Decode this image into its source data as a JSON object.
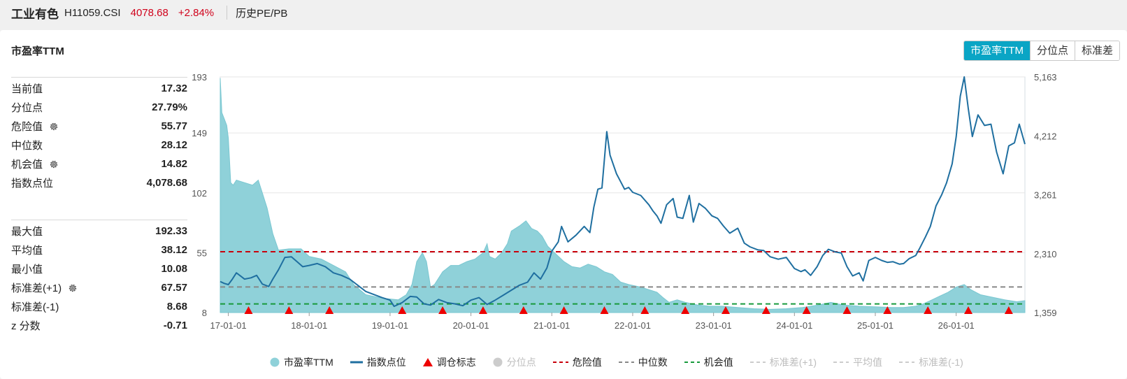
{
  "header": {
    "name": "工业有色",
    "code": "H11059.CSI",
    "price": "4078.68",
    "change": "+2.84%",
    "tab": "历史PE/PB"
  },
  "chart_title": "市盈率TTM",
  "buttons": [
    {
      "label": "市盈率TTM",
      "active": true
    },
    {
      "label": "分位点",
      "active": false
    },
    {
      "label": "标准差",
      "active": false
    }
  ],
  "stats_group1": [
    {
      "label": "当前值",
      "value": "17.32",
      "gear": false
    },
    {
      "label": "分位点",
      "value": "27.79%",
      "gear": false
    },
    {
      "label": "危险值",
      "value": "55.77",
      "gear": true
    },
    {
      "label": "中位数",
      "value": "28.12",
      "gear": false
    },
    {
      "label": "机会值",
      "value": "14.82",
      "gear": true
    },
    {
      "label": "指数点位",
      "value": "4,078.68",
      "gear": false
    }
  ],
  "stats_group2": [
    {
      "label": "最大值",
      "value": "192.33",
      "gear": false
    },
    {
      "label": "平均值",
      "value": "38.12",
      "gear": false
    },
    {
      "label": "最小值",
      "value": "10.08",
      "gear": false
    },
    {
      "label": "标准差(+1)",
      "value": "67.57",
      "gear": true
    },
    {
      "label": "标准差(-1)",
      "value": "8.68",
      "gear": false
    },
    {
      "label": "z 分数",
      "value": "-0.71",
      "gear": false
    }
  ],
  "colors": {
    "pe_fill": "#8fd1d9",
    "index_line": "#1f6fa0",
    "danger": "#c9000b",
    "median": "#888888",
    "opportunity": "#179a3c",
    "marker": "#ee0000",
    "accent": "#0aa5c5"
  },
  "legend": [
    {
      "label": "市盈率TTM",
      "type": "circle",
      "color": "#8fd1d9",
      "enabled": true
    },
    {
      "label": "指数点位",
      "type": "line",
      "color": "#1f6fa0",
      "enabled": true
    },
    {
      "label": "调仓标志",
      "type": "triangle",
      "color": "#ee0000",
      "enabled": true
    },
    {
      "label": "分位点",
      "type": "circle",
      "color": "#cccccc",
      "enabled": false
    },
    {
      "label": "危险值",
      "type": "dash",
      "color": "#c9000b",
      "enabled": true
    },
    {
      "label": "中位数",
      "type": "dash",
      "color": "#888888",
      "enabled": true
    },
    {
      "label": "机会值",
      "type": "dash",
      "color": "#179a3c",
      "enabled": true
    },
    {
      "label": "标准差(+1)",
      "type": "dash",
      "color": "#cccccc",
      "enabled": false
    },
    {
      "label": "平均值",
      "type": "dash",
      "color": "#cccccc",
      "enabled": false
    },
    {
      "label": "标准差(-1)",
      "type": "dash",
      "color": "#cccccc",
      "enabled": false
    }
  ],
  "chart_data": {
    "type": "area",
    "x_start": 2016.9,
    "x_end": 2026.85,
    "x_ticks": [
      "17-01-01",
      "18-01-01",
      "19-01-01",
      "20-01-01",
      "21-01-01",
      "22-01-01",
      "23-01-01",
      "24-01-01",
      "25-01-01",
      "26-01-01"
    ],
    "x_tick_values": [
      2017,
      2018,
      2019,
      2020,
      2021,
      2022,
      2023,
      2024,
      2025,
      2026
    ],
    "y_left": {
      "min": 8,
      "max": 193,
      "ticks": [
        "193",
        "149",
        "102",
        "55",
        "8"
      ],
      "tick_values": [
        193,
        149,
        102,
        55,
        8
      ]
    },
    "y_right": {
      "min": 1359,
      "max": 5163,
      "ticks": [
        "5,163",
        "4,212",
        "3,261",
        "2,310",
        "1,359"
      ],
      "tick_values": [
        5163,
        4212,
        3261,
        2310,
        1359
      ]
    },
    "reference_lines": {
      "danger": 55.77,
      "median": 28.12,
      "opportunity": 14.82
    },
    "series": [
      {
        "name": "市盈率TTM",
        "axis": "left",
        "points": [
          [
            2016.9,
            192
          ],
          [
            2016.92,
            165
          ],
          [
            2016.95,
            160
          ],
          [
            2016.98,
            155
          ],
          [
            2017.0,
            145
          ],
          [
            2017.03,
            110
          ],
          [
            2017.06,
            108
          ],
          [
            2017.1,
            112
          ],
          [
            2017.2,
            110
          ],
          [
            2017.3,
            108
          ],
          [
            2017.37,
            112
          ],
          [
            2017.42,
            102
          ],
          [
            2017.48,
            90
          ],
          [
            2017.55,
            70
          ],
          [
            2017.62,
            57
          ],
          [
            2017.75,
            58
          ],
          [
            2017.9,
            58
          ],
          [
            2018.0,
            52
          ],
          [
            2018.15,
            50
          ],
          [
            2018.3,
            45
          ],
          [
            2018.45,
            40
          ],
          [
            2018.55,
            30
          ],
          [
            2018.7,
            22
          ],
          [
            2018.85,
            20
          ],
          [
            2018.95,
            19
          ],
          [
            2019.1,
            18
          ],
          [
            2019.2,
            22
          ],
          [
            2019.27,
            30
          ],
          [
            2019.33,
            48
          ],
          [
            2019.4,
            55
          ],
          [
            2019.45,
            48
          ],
          [
            2019.5,
            28
          ],
          [
            2019.55,
            30
          ],
          [
            2019.65,
            40
          ],
          [
            2019.75,
            45
          ],
          [
            2019.85,
            45
          ],
          [
            2019.95,
            48
          ],
          [
            2020.05,
            50
          ],
          [
            2020.15,
            55
          ],
          [
            2020.2,
            62
          ],
          [
            2020.23,
            52
          ],
          [
            2020.3,
            50
          ],
          [
            2020.38,
            55
          ],
          [
            2020.45,
            62
          ],
          [
            2020.5,
            72
          ],
          [
            2020.6,
            76
          ],
          [
            2020.68,
            80
          ],
          [
            2020.75,
            74
          ],
          [
            2020.82,
            72
          ],
          [
            2020.88,
            68
          ],
          [
            2020.95,
            60
          ],
          [
            2021.05,
            54
          ],
          [
            2021.15,
            48
          ],
          [
            2021.25,
            44
          ],
          [
            2021.35,
            43
          ],
          [
            2021.45,
            46
          ],
          [
            2021.55,
            44
          ],
          [
            2021.65,
            40
          ],
          [
            2021.75,
            38
          ],
          [
            2021.85,
            32
          ],
          [
            2021.95,
            30
          ],
          [
            2022.1,
            28
          ],
          [
            2022.2,
            26
          ],
          [
            2022.3,
            24
          ],
          [
            2022.37,
            20
          ],
          [
            2022.45,
            16
          ],
          [
            2022.55,
            18
          ],
          [
            2022.65,
            16
          ],
          [
            2022.8,
            14
          ],
          [
            2022.95,
            13
          ],
          [
            2023.1,
            13
          ],
          [
            2023.3,
            12
          ],
          [
            2023.5,
            11
          ],
          [
            2023.7,
            10.5
          ],
          [
            2023.9,
            11
          ],
          [
            2024.1,
            12
          ],
          [
            2024.3,
            14
          ],
          [
            2024.45,
            16
          ],
          [
            2024.6,
            14
          ],
          [
            2024.8,
            13
          ],
          [
            2025.0,
            12.5
          ],
          [
            2025.2,
            12
          ],
          [
            2025.35,
            12
          ],
          [
            2025.5,
            13
          ],
          [
            2025.6,
            15
          ],
          [
            2025.7,
            18
          ],
          [
            2025.8,
            21
          ],
          [
            2025.9,
            24
          ],
          [
            2026.0,
            28
          ],
          [
            2026.1,
            30
          ],
          [
            2026.18,
            26
          ],
          [
            2026.3,
            22
          ],
          [
            2026.45,
            20
          ],
          [
            2026.6,
            18
          ],
          [
            2026.75,
            16.5
          ],
          [
            2026.85,
            17.32
          ]
        ]
      },
      {
        "name": "指数点位",
        "axis": "right",
        "points": [
          [
            2016.9,
            1860
          ],
          [
            2016.95,
            1830
          ],
          [
            2017.0,
            1810
          ],
          [
            2017.05,
            1900
          ],
          [
            2017.1,
            2000
          ],
          [
            2017.15,
            1950
          ],
          [
            2017.2,
            1900
          ],
          [
            2017.28,
            1920
          ],
          [
            2017.35,
            1960
          ],
          [
            2017.42,
            1820
          ],
          [
            2017.5,
            1780
          ],
          [
            2017.55,
            1900
          ],
          [
            2017.62,
            2050
          ],
          [
            2017.7,
            2250
          ],
          [
            2017.78,
            2260
          ],
          [
            2017.85,
            2180
          ],
          [
            2017.92,
            2100
          ],
          [
            2018.0,
            2120
          ],
          [
            2018.1,
            2150
          ],
          [
            2018.2,
            2100
          ],
          [
            2018.3,
            2000
          ],
          [
            2018.4,
            1960
          ],
          [
            2018.5,
            1900
          ],
          [
            2018.6,
            1800
          ],
          [
            2018.7,
            1700
          ],
          [
            2018.8,
            1650
          ],
          [
            2018.9,
            1600
          ],
          [
            2019.0,
            1560
          ],
          [
            2019.05,
            1460
          ],
          [
            2019.15,
            1520
          ],
          [
            2019.25,
            1620
          ],
          [
            2019.33,
            1610
          ],
          [
            2019.42,
            1500
          ],
          [
            2019.5,
            1480
          ],
          [
            2019.6,
            1570
          ],
          [
            2019.7,
            1520
          ],
          [
            2019.8,
            1500
          ],
          [
            2019.9,
            1470
          ],
          [
            2020.0,
            1560
          ],
          [
            2020.1,
            1600
          ],
          [
            2020.2,
            1490
          ],
          [
            2020.3,
            1560
          ],
          [
            2020.4,
            1640
          ],
          [
            2020.5,
            1720
          ],
          [
            2020.6,
            1800
          ],
          [
            2020.7,
            1850
          ],
          [
            2020.78,
            2000
          ],
          [
            2020.86,
            1900
          ],
          [
            2020.94,
            2080
          ],
          [
            2021.0,
            2350
          ],
          [
            2021.08,
            2500
          ],
          [
            2021.12,
            2750
          ],
          [
            2021.2,
            2500
          ],
          [
            2021.3,
            2610
          ],
          [
            2021.4,
            2750
          ],
          [
            2021.47,
            2650
          ],
          [
            2021.52,
            3060
          ],
          [
            2021.57,
            3350
          ],
          [
            2021.62,
            3370
          ],
          [
            2021.68,
            4280
          ],
          [
            2021.72,
            3900
          ],
          [
            2021.8,
            3600
          ],
          [
            2021.9,
            3350
          ],
          [
            2021.95,
            3380
          ],
          [
            2022.0,
            3300
          ],
          [
            2022.1,
            3250
          ],
          [
            2022.2,
            3100
          ],
          [
            2022.25,
            3000
          ],
          [
            2022.3,
            2920
          ],
          [
            2022.35,
            2800
          ],
          [
            2022.42,
            3100
          ],
          [
            2022.5,
            3200
          ],
          [
            2022.55,
            2900
          ],
          [
            2022.62,
            2880
          ],
          [
            2022.7,
            3250
          ],
          [
            2022.75,
            2820
          ],
          [
            2022.82,
            3120
          ],
          [
            2022.9,
            3040
          ],
          [
            2022.98,
            2920
          ],
          [
            2023.05,
            2880
          ],
          [
            2023.12,
            2760
          ],
          [
            2023.2,
            2640
          ],
          [
            2023.3,
            2720
          ],
          [
            2023.38,
            2480
          ],
          [
            2023.45,
            2420
          ],
          [
            2023.55,
            2370
          ],
          [
            2023.62,
            2360
          ],
          [
            2023.7,
            2260
          ],
          [
            2023.8,
            2220
          ],
          [
            2023.9,
            2250
          ],
          [
            2024.0,
            2070
          ],
          [
            2024.08,
            2020
          ],
          [
            2024.13,
            2050
          ],
          [
            2024.2,
            1960
          ],
          [
            2024.28,
            2100
          ],
          [
            2024.35,
            2280
          ],
          [
            2024.42,
            2380
          ],
          [
            2024.5,
            2340
          ],
          [
            2024.58,
            2320
          ],
          [
            2024.65,
            2100
          ],
          [
            2024.72,
            1950
          ],
          [
            2024.8,
            2000
          ],
          [
            2024.85,
            1870
          ],
          [
            2024.92,
            2200
          ],
          [
            2025.0,
            2250
          ],
          [
            2025.08,
            2200
          ],
          [
            2025.15,
            2170
          ],
          [
            2025.22,
            2180
          ],
          [
            2025.3,
            2140
          ],
          [
            2025.35,
            2150
          ],
          [
            2025.42,
            2230
          ],
          [
            2025.5,
            2280
          ],
          [
            2025.55,
            2400
          ],
          [
            2025.62,
            2580
          ],
          [
            2025.68,
            2750
          ],
          [
            2025.75,
            3080
          ],
          [
            2025.82,
            3260
          ],
          [
            2025.88,
            3450
          ],
          [
            2025.95,
            3760
          ],
          [
            2026.0,
            4200
          ],
          [
            2026.05,
            4850
          ],
          [
            2026.1,
            5163
          ],
          [
            2026.15,
            4650
          ],
          [
            2026.2,
            4200
          ],
          [
            2026.27,
            4550
          ],
          [
            2026.35,
            4380
          ],
          [
            2026.43,
            4400
          ],
          [
            2026.5,
            3950
          ],
          [
            2026.58,
            3600
          ],
          [
            2026.65,
            4050
          ],
          [
            2026.72,
            4100
          ],
          [
            2026.78,
            4400
          ],
          [
            2026.85,
            4078.68
          ]
        ]
      }
    ],
    "rebalance_markers": [
      2017.25,
      2017.75,
      2018.25,
      2019.15,
      2019.65,
      2020.15,
      2020.65,
      2021.15,
      2021.65,
      2022.15,
      2022.65,
      2023.15,
      2023.65,
      2024.15,
      2024.65,
      2025.15,
      2025.65,
      2026.15,
      2026.65
    ]
  }
}
